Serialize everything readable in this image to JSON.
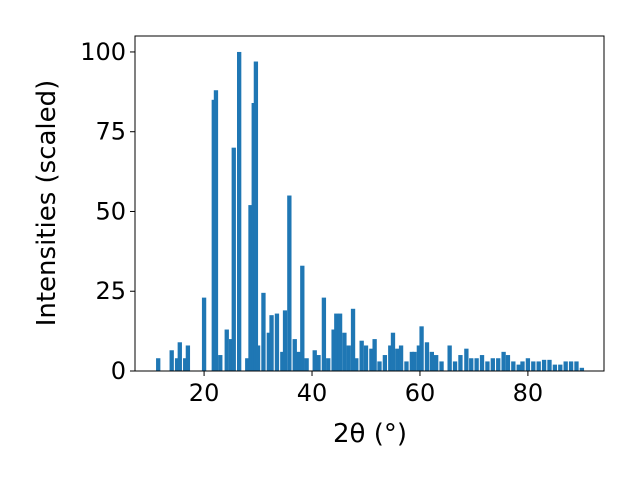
{
  "chart_data": {
    "type": "bar",
    "xlabel": "2θ (°)",
    "ylabel": "Intensities (scaled)",
    "x": [
      11.5,
      14,
      15,
      15.5,
      16.5,
      17,
      20,
      21.8,
      22.2,
      23,
      24.2,
      25,
      25.5,
      26.5,
      28,
      28.6,
      29.2,
      29.6,
      30,
      31,
      32,
      32.5,
      33.5,
      34.5,
      35,
      35.8,
      36.8,
      37.5,
      38.2,
      39,
      40.5,
      41.2,
      42.2,
      43,
      44,
      44.5,
      45.2,
      46,
      46.8,
      47.6,
      48.2,
      49.2,
      50,
      51,
      51.6,
      52.5,
      53.5,
      54.5,
      55,
      55.8,
      56.5,
      57.5,
      58.5,
      59,
      59.8,
      60.3,
      61.3,
      62.2,
      63,
      64,
      65.5,
      66.5,
      67.5,
      68.6,
      69.5,
      70.5,
      71.5,
      72.5,
      73.5,
      74.5,
      75.5,
      76.3,
      77.3,
      78.3,
      79,
      80,
      81,
      82,
      83,
      84,
      85,
      86,
      87,
      88,
      89,
      90
    ],
    "values": [
      4,
      6.5,
      4,
      9,
      4,
      8,
      23,
      85,
      88,
      5,
      13,
      10,
      70,
      100,
      4,
      52,
      84,
      97,
      8,
      24.5,
      12,
      17.5,
      18,
      6,
      19,
      55,
      10,
      6,
      33,
      4,
      6.5,
      5,
      23,
      4,
      13,
      18,
      18,
      12,
      8,
      19.5,
      4,
      9.5,
      8,
      7,
      10,
      3,
      5,
      8,
      12,
      7,
      8,
      3,
      6,
      6,
      8,
      14,
      9,
      6,
      5,
      3,
      8,
      3,
      5,
      7,
      4,
      4,
      5,
      3,
      4,
      4,
      6,
      5,
      3,
      2,
      3,
      4,
      3,
      3,
      3.5,
      3.5,
      2,
      2,
      3,
      3,
      3,
      1
    ],
    "color": "#1f77b4",
    "xlim": [
      7.2,
      94.1
    ],
    "ylim": [
      0,
      105
    ],
    "xticks": [
      20,
      40,
      60,
      80
    ],
    "yticks": [
      0,
      25,
      50,
      75,
      100
    ]
  }
}
